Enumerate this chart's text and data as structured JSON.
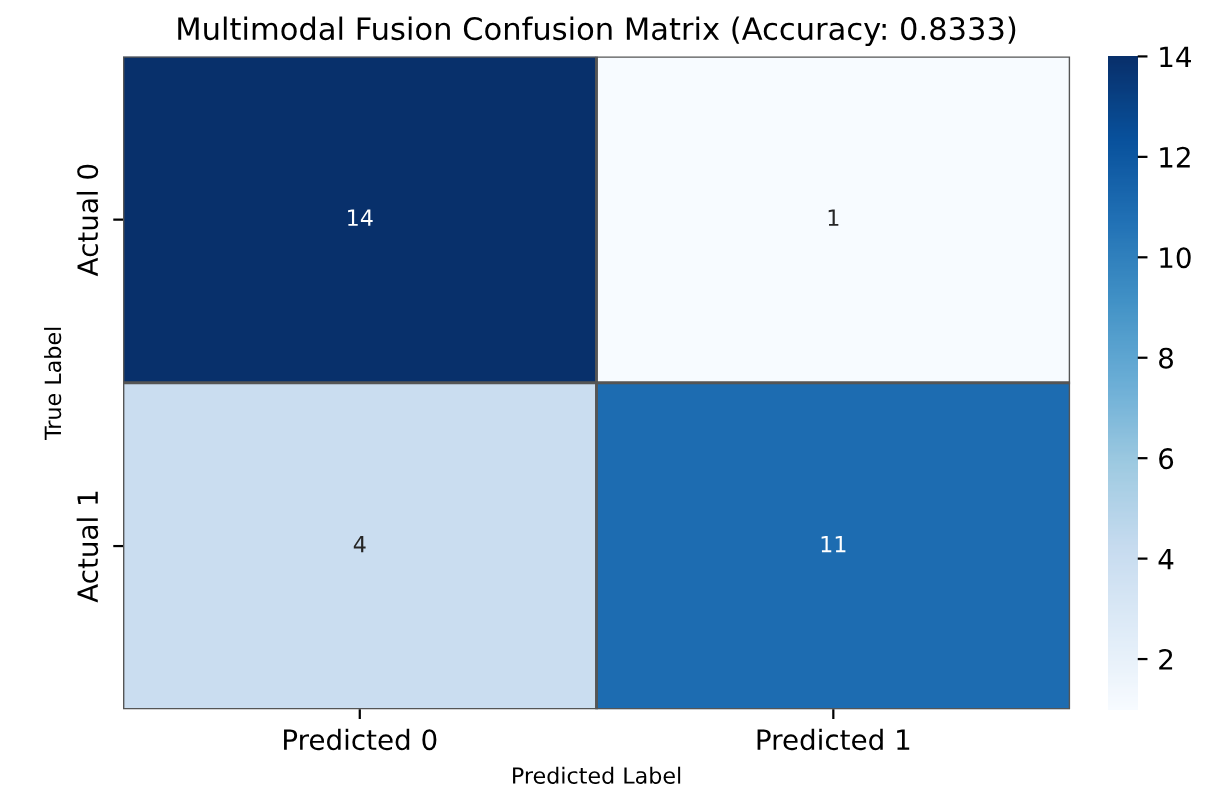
{
  "chart_data": {
    "type": "heatmap",
    "title": "Multimodal Fusion Confusion Matrix (Accuracy: 0.8333)",
    "xlabel": "Predicted Label",
    "ylabel": "True Label",
    "categories": [
      "Predicted 0",
      "Predicted 1"
    ],
    "y_categories": [
      "Actual 0",
      "Actual 1"
    ],
    "cells": [
      [
        14,
        1
      ],
      [
        4,
        11
      ]
    ],
    "clim": [
      1,
      14
    ],
    "cticks": [
      2,
      4,
      6,
      8,
      10,
      12,
      14
    ],
    "data_labels": true,
    "grid": false,
    "legend": false
  }
}
